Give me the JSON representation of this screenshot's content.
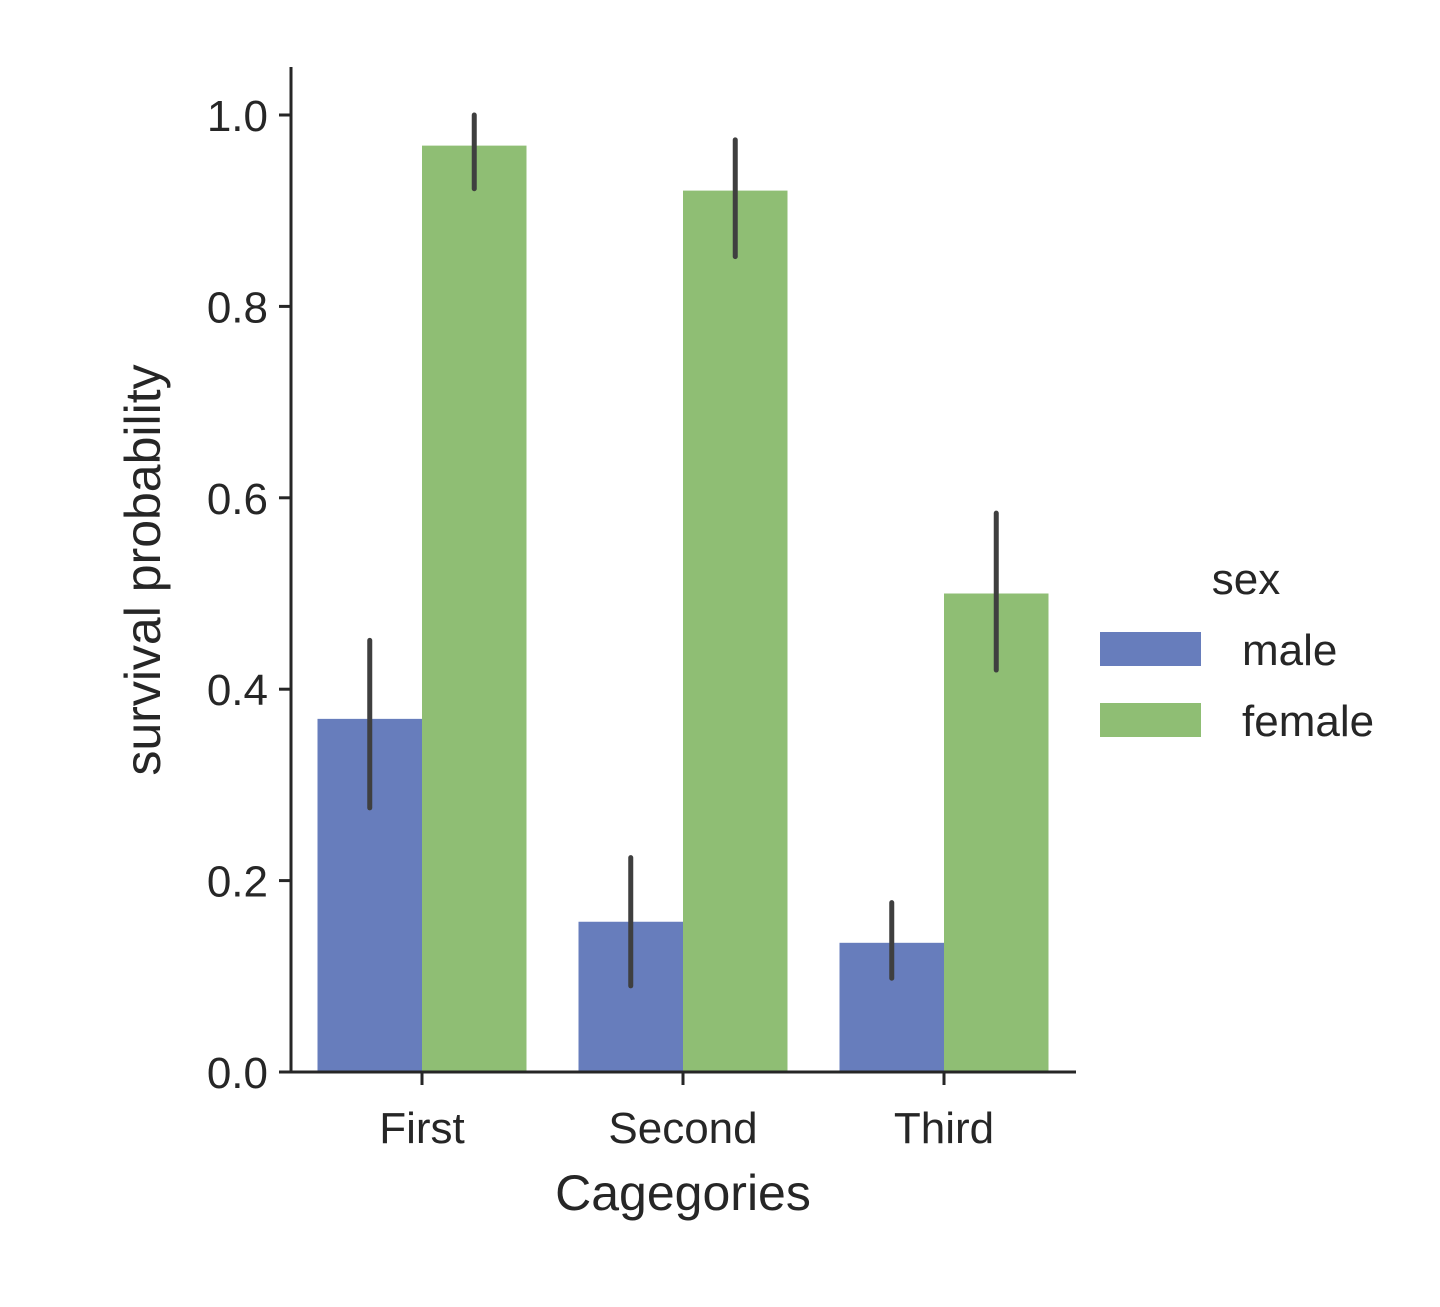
{
  "chart_data": {
    "type": "bar",
    "title": "",
    "xlabel": "Cagegories",
    "ylabel": "survival probability",
    "categories": [
      "First",
      "Second",
      "Third"
    ],
    "ylim": [
      0,
      1.05
    ],
    "yticks": [
      "0.0",
      "0.2",
      "0.4",
      "0.6",
      "0.8",
      "1.0"
    ],
    "grid": false,
    "legend": {
      "title": "sex",
      "placement": "right"
    },
    "series": [
      {
        "name": "male",
        "color": "#677dbc",
        "values": [
          0.369,
          0.157,
          0.135
        ],
        "ci_low": [
          0.276,
          0.09,
          0.098
        ],
        "ci_high": [
          0.451,
          0.224,
          0.177
        ]
      },
      {
        "name": "female",
        "color": "#8fbe74",
        "values": [
          0.968,
          0.921,
          0.5
        ],
        "ci_low": [
          0.923,
          0.852,
          0.42
        ],
        "ci_high": [
          1.0,
          0.974,
          0.584
        ]
      }
    ],
    "errorbar_color": "#3f3f3f"
  }
}
